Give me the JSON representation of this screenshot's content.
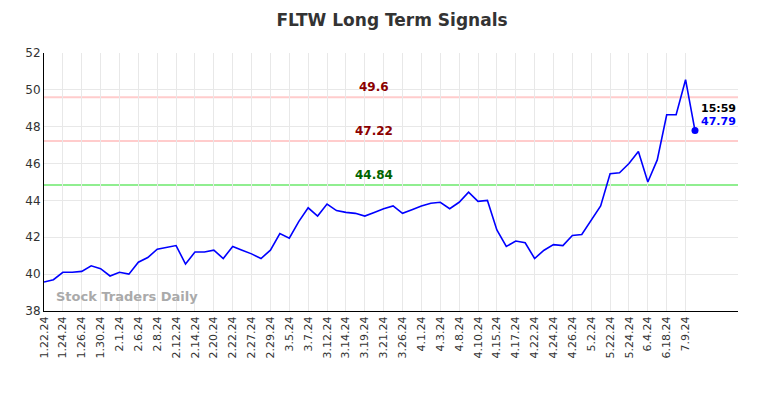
{
  "chart_data": {
    "type": "line",
    "title": "FLTW Long Term Signals",
    "categories": [
      "1.22.24",
      null,
      "1.24.24",
      null,
      "1.26.24",
      null,
      "1.30.24",
      null,
      "2.1.24",
      null,
      "2.6.24",
      null,
      "2.8.24",
      null,
      "2.12.24",
      null,
      "2.14.24",
      null,
      "2.20.24",
      null,
      "2.22.24",
      null,
      "2.27.24",
      null,
      "2.29.24",
      null,
      "3.5.24",
      null,
      "3.7.24",
      null,
      "3.12.24",
      null,
      "3.14.24",
      null,
      "3.19.24",
      null,
      "3.21.24",
      null,
      "3.26.24",
      null,
      "4.1.24",
      null,
      "4.3.24",
      null,
      "4.8.24",
      null,
      "4.10.24",
      null,
      "4.15.24",
      null,
      "4.17.24",
      null,
      "4.22.24",
      null,
      "4.24.24",
      null,
      "4.26.24",
      null,
      "5.2.24",
      null,
      "5.22.24",
      null,
      "5.24.24",
      null,
      "6.4.24",
      null,
      "6.18.24",
      null,
      "7.9.24",
      null
    ],
    "values": [
      39.57,
      39.7,
      40.1,
      40.1,
      40.15,
      40.45,
      40.3,
      39.9,
      40.1,
      40.0,
      40.65,
      40.9,
      41.35,
      41.45,
      41.55,
      40.55,
      41.2,
      41.2,
      41.3,
      40.85,
      41.5,
      41.3,
      41.1,
      40.85,
      41.3,
      42.2,
      41.95,
      42.85,
      43.6,
      43.15,
      43.8,
      43.45,
      43.35,
      43.3,
      43.15,
      43.35,
      43.55,
      43.7,
      43.3,
      43.5,
      43.7,
      43.85,
      43.9,
      43.55,
      43.9,
      44.45,
      43.95,
      44.0,
      42.4,
      41.5,
      41.8,
      41.7,
      40.85,
      41.3,
      41.6,
      41.55,
      42.1,
      42.15,
      42.9,
      43.7,
      45.45,
      45.5,
      46.0,
      46.65,
      45.0,
      46.2,
      48.65,
      48.65,
      50.55,
      47.79
    ],
    "color": "#0000ff",
    "ylim": [
      38,
      52
    ],
    "yticks": [
      38,
      40,
      42,
      44,
      46,
      48,
      50,
      52
    ],
    "grid": true,
    "reference_lines": [
      {
        "value": 49.6,
        "label": "49.6",
        "color": "#ffcccc",
        "label_color": "#8b0000"
      },
      {
        "value": 47.22,
        "label": "47.22",
        "color": "#ffcccc",
        "label_color": "#8b0000"
      },
      {
        "value": 44.84,
        "label": "44.84",
        "color": "#90ee90",
        "label_color": "#006400"
      }
    ],
    "last_point": {
      "time_label": "15:59",
      "price_label": "47.79",
      "marker": "circle"
    },
    "watermark": "Stock Traders Daily"
  }
}
